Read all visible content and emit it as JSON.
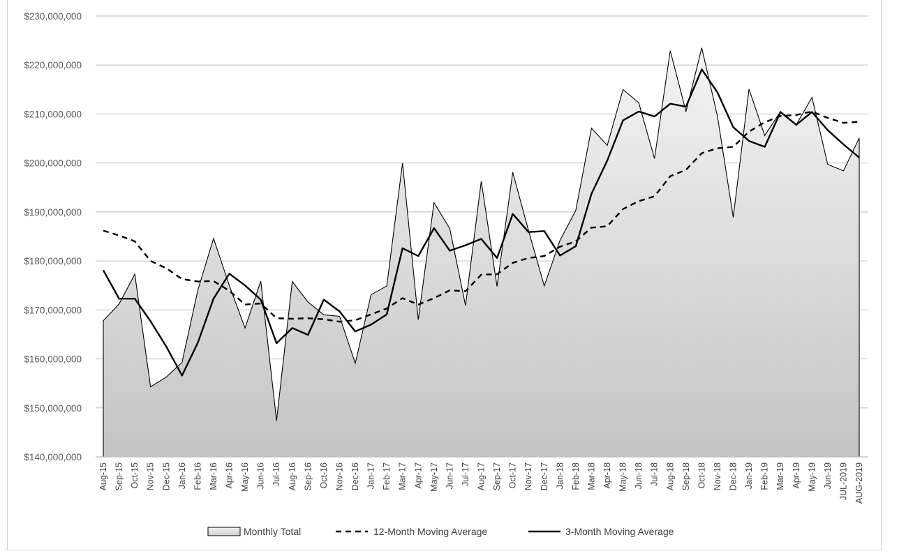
{
  "chart_data": {
    "type": "area",
    "title": "",
    "xlabel": "",
    "ylabel": "",
    "ylim": [
      140000000,
      230000000
    ],
    "y_ticks": [
      "$140,000,000",
      "$150,000,000",
      "$160,000,000",
      "$170,000,000",
      "$180,000,000",
      "$190,000,000",
      "$200,000,000",
      "$210,000,000",
      "$220,000,000",
      "$230,000,000"
    ],
    "y_tick_values": [
      140000000,
      150000000,
      160000000,
      170000000,
      180000000,
      190000000,
      200000000,
      210000000,
      220000000,
      230000000
    ],
    "grid": true,
    "legend_position": "bottom",
    "categories": [
      "Aug-15",
      "Sep-15",
      "Oct-15",
      "Nov-15",
      "Dec-15",
      "Jan-16",
      "Feb-16",
      "Mar-16",
      "Apr-16",
      "May-16",
      "Jun-16",
      "Jul-16",
      "Aug-16",
      "Sep-16",
      "Oct-16",
      "Nov-16",
      "Dec-16",
      "Jan-17",
      "Feb-17",
      "Mar-17",
      "Apr-17",
      "May-17",
      "Jun-17",
      "Jul-17",
      "Aug-17",
      "Sep-17",
      "Oct-17",
      "Nov-17",
      "Dec-17",
      "Jan-18",
      "Feb-18",
      "Mar-18",
      "Apr-18",
      "May-18",
      "Jun-18",
      "Jul-18",
      "Aug-18",
      "Sep-18",
      "Oct-18",
      "Nov-18",
      "Dec-18",
      "Jan-19",
      "Feb-19",
      "Mar-19",
      "Apr-19",
      "May-19",
      "Jun-19",
      "JUL-2019",
      "AUG-2019"
    ],
    "series": [
      {
        "name": "Monthly Total",
        "style": "area",
        "values": [
          167800000,
          171200000,
          177300000,
          154300000,
          156300000,
          159300000,
          174000000,
          184600000,
          175000000,
          166300000,
          175900000,
          147400000,
          175800000,
          171600000,
          169000000,
          168700000,
          159100000,
          173100000,
          174900000,
          200000000,
          168000000,
          191900000,
          186600000,
          170900000,
          196300000,
          174800000,
          198100000,
          186200000,
          174900000,
          184200000,
          190300000,
          207100000,
          203600000,
          215000000,
          212300000,
          200900000,
          222900000,
          210500000,
          223500000,
          209500000,
          188900000,
          215100000,
          205600000,
          210500000,
          207800000,
          213400000,
          199700000,
          198400000,
          205100000
        ]
      },
      {
        "name": "12-Month Moving Average",
        "style": "dashed",
        "values": [
          186200000,
          185200000,
          184000000,
          180000000,
          178500000,
          176300000,
          175800000,
          175900000,
          173900000,
          171100000,
          171300000,
          168300000,
          168200000,
          168300000,
          168100000,
          167600000,
          167900000,
          169100000,
          170300000,
          172400000,
          171100000,
          172400000,
          174000000,
          173800000,
          177200000,
          177300000,
          179600000,
          180600000,
          181000000,
          182900000,
          184000000,
          186800000,
          187100000,
          190600000,
          192200000,
          193200000,
          197300000,
          198600000,
          202000000,
          203000000,
          203300000,
          206400000,
          208300000,
          209600000,
          209800000,
          210500000,
          209200000,
          208200000,
          208400000
        ]
      },
      {
        "name": "3-Month Moving Average",
        "style": "solid",
        "values": [
          178100000,
          172300000,
          172300000,
          167700000,
          162500000,
          156600000,
          163300000,
          172300000,
          177400000,
          175000000,
          172100000,
          163200000,
          166300000,
          164900000,
          172100000,
          169700000,
          165600000,
          167000000,
          169100000,
          182600000,
          181000000,
          186700000,
          182100000,
          183200000,
          184500000,
          180600000,
          189600000,
          185900000,
          186100000,
          181100000,
          183000000,
          193700000,
          200500000,
          208700000,
          210500000,
          209500000,
          212100000,
          211500000,
          219100000,
          214400000,
          207300000,
          204500000,
          203300000,
          210400000,
          207800000,
          210400000,
          206700000,
          203800000,
          201100000
        ]
      }
    ]
  },
  "legend": {
    "items": [
      {
        "label": "Monthly Total",
        "style": "area-swatch"
      },
      {
        "label": "12-Month Moving Average",
        "style": "dashed-line"
      },
      {
        "label": "3-Month Moving Average",
        "style": "solid-line"
      }
    ]
  },
  "colors": {
    "area_fill_top": "#f2f2f2",
    "area_fill_bottom": "#c6c6c6",
    "line": "#000000",
    "grid": "#c8c8c8",
    "axis_text": "#595959",
    "frame": "#d0d0d0"
  }
}
